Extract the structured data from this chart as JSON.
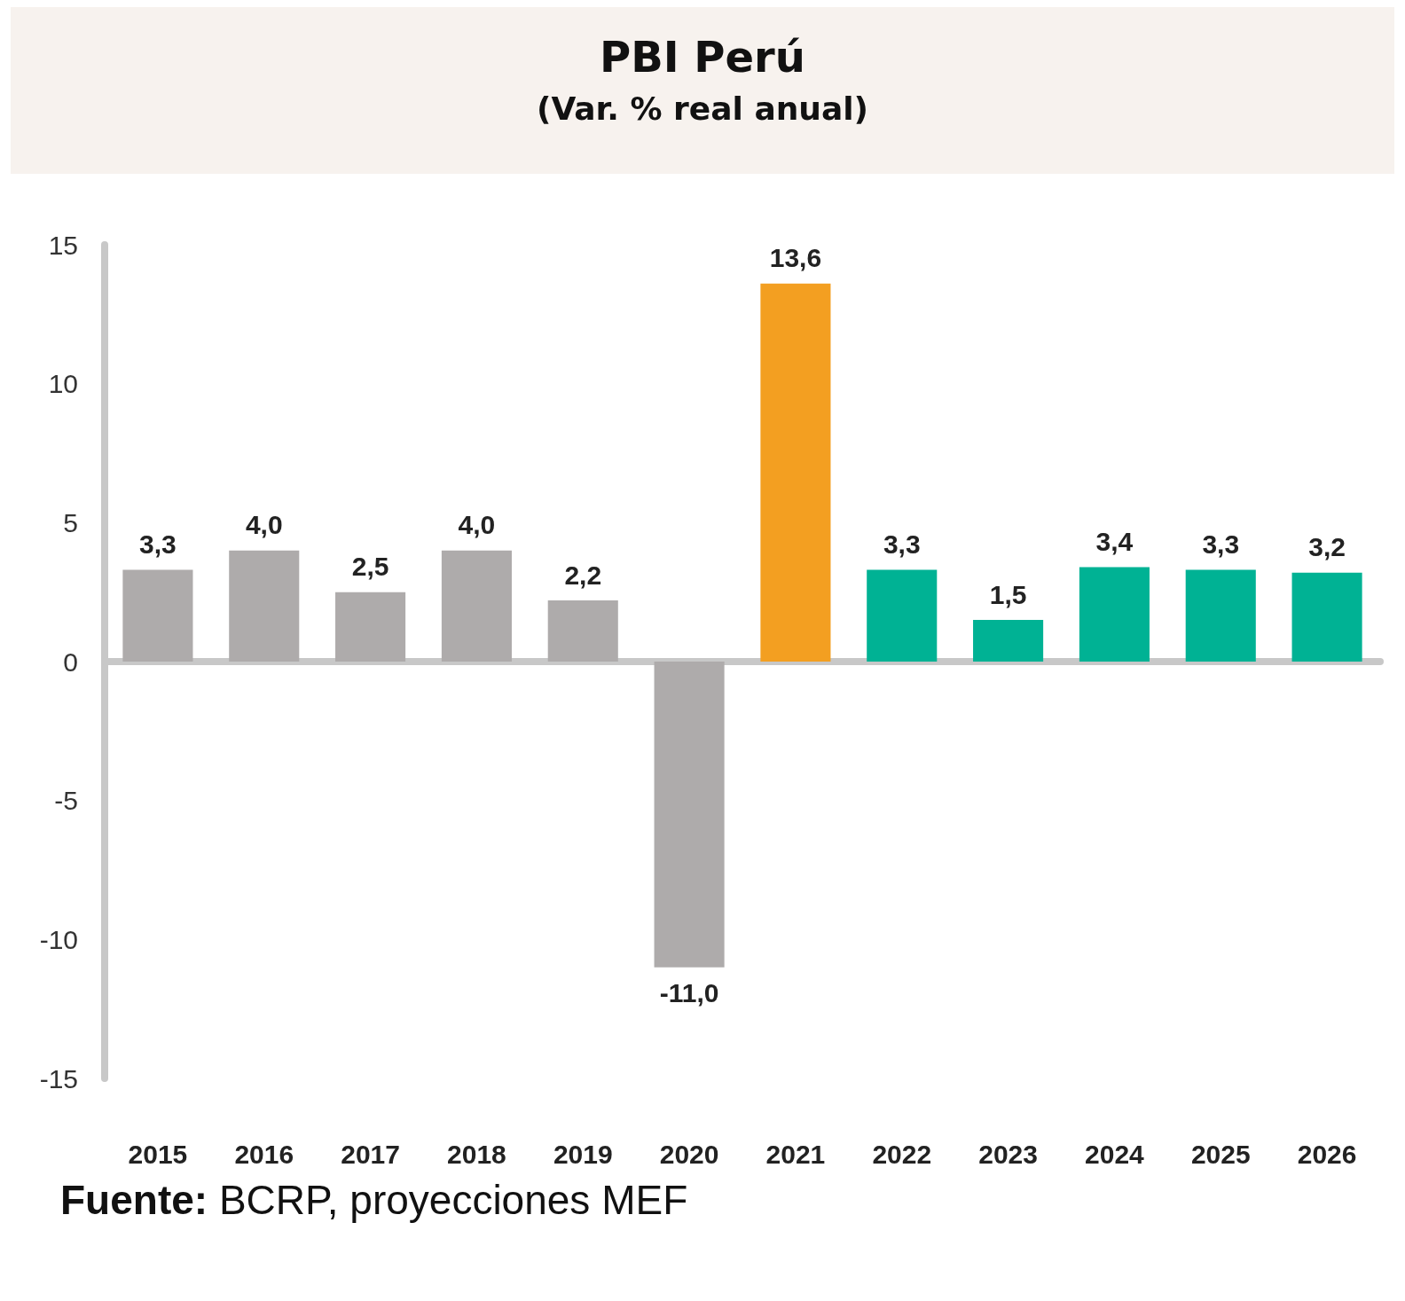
{
  "chart_data": {
    "type": "bar",
    "title": "PBI Perú",
    "subtitle": "(Var. % real anual)",
    "categories": [
      "2015",
      "2016",
      "2017",
      "2018",
      "2019",
      "2020",
      "2021",
      "2022",
      "2023",
      "2024",
      "2025",
      "2026"
    ],
    "values": [
      3.3,
      4.0,
      2.5,
      4.0,
      2.2,
      -11.0,
      13.6,
      3.3,
      1.5,
      3.4,
      3.3,
      3.2
    ],
    "colors": [
      "#aeabab",
      "#aeabab",
      "#aeabab",
      "#aeabab",
      "#aeabab",
      "#aeabab",
      "#f39f21",
      "#00b294",
      "#00b294",
      "#00b294",
      "#00b294",
      "#00b294"
    ],
    "value_labels": [
      "3,3",
      "4,0",
      "2,5",
      "4,0",
      "2,2",
      "-11,0",
      "13,6",
      "3,3",
      "1,5",
      "3,4",
      "3,3",
      "3,2"
    ],
    "ylim": [
      -15,
      15
    ],
    "yticks": [
      -15,
      -10,
      -5,
      0,
      5,
      10,
      15
    ],
    "annotations": [
      "Fuente: BCRP, proyecciones MEF"
    ]
  }
}
